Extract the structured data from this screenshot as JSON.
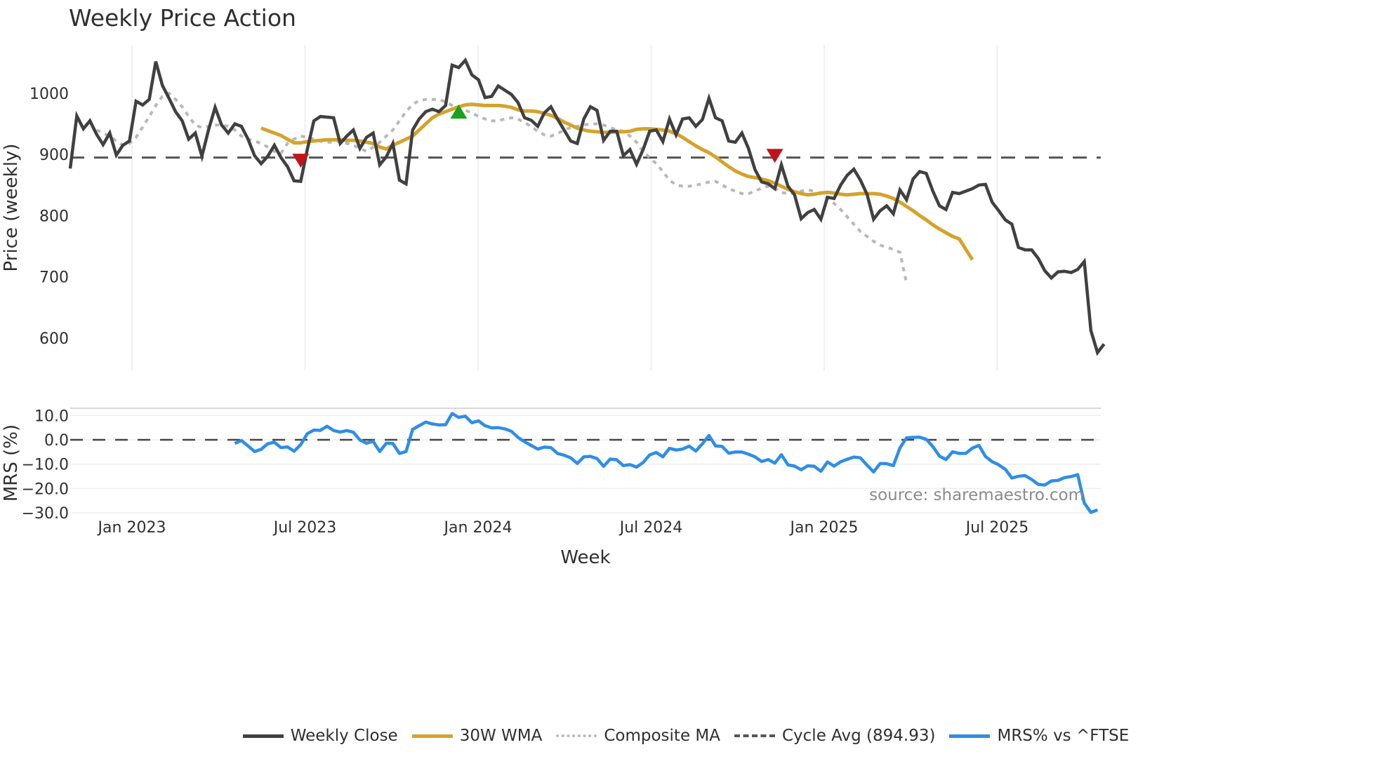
{
  "title": "Weekly Price Action",
  "source_label": "source: sharemaestro.com",
  "legend": [
    {
      "label": "Weekly Close",
      "color": "#404040",
      "style": "solid"
    },
    {
      "label": "30W WMA",
      "color": "#d4a32a",
      "style": "solid"
    },
    {
      "label": "Composite MA",
      "color": "#b8b8b8",
      "style": "dotted"
    },
    {
      "label": "Cycle Avg (894.93)",
      "color": "#555555",
      "style": "dashed"
    },
    {
      "label": "MRS% vs ^FTSE",
      "color": "#2e8ee6",
      "style": "solid"
    }
  ],
  "chart_data": [
    {
      "type": "line",
      "title": "Weekly Price Action",
      "xlabel": "Week",
      "ylabel": "Price (weekly)",
      "ylim": [
        545,
        1080
      ],
      "yticks": [
        600,
        700,
        800,
        900,
        1000
      ],
      "xticks": [
        "Jan 2023",
        "Jul 2023",
        "Jan 2024",
        "Jul 2024",
        "Jan 2025",
        "Jul 2025"
      ],
      "grid": true,
      "cycle_avg": 894.93,
      "x_start_week": "2022-10-24",
      "series": [
        {
          "name": "Weekly Close",
          "values": [
            877,
            963,
            942,
            955,
            933,
            916,
            935,
            899,
            915,
            922,
            987,
            981,
            990,
            1052,
            1013,
            992,
            970,
            955,
            925,
            935,
            897,
            940,
            977,
            948,
            935,
            950,
            946,
            925,
            898,
            885,
            897,
            915,
            895,
            880,
            857,
            856,
            908,
            955,
            962,
            961,
            960,
            918,
            930,
            940,
            910,
            928,
            935,
            883,
            896,
            918,
            858,
            852,
            940,
            958,
            970,
            974,
            970,
            980,
            1046,
            1042,
            1054,
            1030,
            1022,
            993,
            995,
            1012,
            1005,
            998,
            985,
            960,
            956,
            946,
            968,
            978,
            958,
            940,
            922,
            918,
            958,
            978,
            972,
            923,
            938,
            938,
            898,
            908,
            884,
            908,
            938,
            940,
            921,
            958,
            932,
            958,
            960,
            946,
            957,
            992,
            960,
            955,
            922,
            920,
            935,
            910,
            875,
            855,
            852,
            844,
            883,
            848,
            834,
            795,
            805,
            810,
            794,
            830,
            828,
            850,
            866,
            876,
            858,
            835,
            794,
            808,
            816,
            803,
            842,
            826,
            860,
            872,
            869,
            840,
            816,
            810,
            838,
            836,
            840,
            844,
            850,
            851,
            822,
            808,
            793,
            786,
            748,
            744,
            744,
            730,
            710,
            698,
            708,
            709,
            707,
            712,
            725,
            612,
            576,
            590
          ]
        },
        {
          "name": "30W WMA",
          "start_index": 29,
          "values": [
            943,
            939,
            935,
            931,
            925,
            919,
            919,
            921,
            922,
            923,
            924,
            924,
            924,
            923,
            923,
            922,
            920,
            918,
            912,
            909,
            915,
            920,
            925,
            930,
            940,
            950,
            960,
            966,
            970,
            974,
            978,
            981,
            982,
            981,
            980,
            980,
            980,
            979,
            977,
            973,
            971,
            971,
            970,
            967,
            964,
            959,
            953,
            948,
            943,
            940,
            938,
            937,
            936,
            936,
            937,
            937,
            938,
            941,
            942,
            942,
            941,
            940,
            938,
            934,
            928,
            921,
            914,
            908,
            903,
            896,
            888,
            880,
            873,
            868,
            864,
            862,
            860,
            857,
            853,
            848,
            843,
            839,
            836,
            834,
            835,
            837,
            838,
            837,
            835,
            834,
            835,
            836,
            836,
            836,
            835,
            832,
            828,
            822,
            815,
            808,
            800,
            793,
            785,
            778,
            772,
            766,
            762,
            745,
            728
          ]
        },
        {
          "name": "Composite MA",
          "start_index": 4,
          "values": [
            940,
            935,
            930,
            922,
            915,
            918,
            928,
            945,
            962,
            980,
            995,
            1000,
            990,
            978,
            962,
            948,
            944,
            946,
            948,
            948,
            946,
            940,
            930,
            925,
            922,
            918,
            912,
            905,
            902,
            918,
            925,
            930,
            928,
            925,
            922,
            920,
            920,
            922,
            918,
            915,
            910,
            905,
            912,
            920,
            930,
            940,
            955,
            970,
            982,
            988,
            990,
            990,
            990,
            986,
            980,
            975,
            972,
            968,
            962,
            958,
            955,
            955,
            958,
            960,
            958,
            952,
            946,
            938,
            932,
            930,
            934,
            940,
            944,
            946,
            948,
            950,
            950,
            948,
            944,
            940,
            938,
            930,
            920,
            905,
            895,
            885,
            872,
            858,
            850,
            848,
            848,
            850,
            852,
            855,
            856,
            850,
            844,
            840,
            836,
            836,
            840,
            845,
            848,
            845,
            838,
            836,
            837,
            840,
            842,
            840,
            835,
            828,
            820,
            810,
            798,
            786,
            774,
            766,
            758,
            752,
            748,
            745,
            740,
            690
          ]
        },
        {
          "name": "Cycle Avg (894.93)",
          "values": [
            894.93
          ]
        }
      ],
      "markers": [
        {
          "type": "sell",
          "shape": "triangle-down",
          "color": "#c0141b",
          "week_index": 35,
          "value": 892
        },
        {
          "type": "buy",
          "shape": "triangle-up",
          "color": "#1aa01a",
          "week_index": 59,
          "value": 970
        },
        {
          "type": "sell",
          "shape": "triangle-down",
          "color": "#c0141b",
          "week_index": 107,
          "value": 900
        }
      ]
    },
    {
      "type": "line",
      "title": "",
      "xlabel": "Week",
      "ylabel": "MRS (%)",
      "ylim": [
        -31,
        13
      ],
      "yticks": [
        10.0,
        0.0,
        -10.0,
        -20.0,
        -30.0
      ],
      "grid": true,
      "series": [
        {
          "name": "MRS% vs ^FTSE",
          "start_index": 25,
          "values": [
            -1.5,
            -0.3,
            -2.5,
            -4.8,
            -3.9,
            -1.6,
            -1.0,
            -3.2,
            -2.9,
            -4.7,
            -2.0,
            2.5,
            4.0,
            3.9,
            5.6,
            3.8,
            3.2,
            3.8,
            3.1,
            -0.1,
            -1.4,
            -0.6,
            -4.8,
            -1.4,
            -1.5,
            -5.6,
            -4.8,
            4.3,
            5.8,
            7.3,
            6.5,
            6.1,
            6.2,
            10.8,
            9.2,
            9.7,
            7.0,
            7.8,
            5.8,
            4.9,
            5.0,
            4.5,
            3.5,
            1.0,
            -0.8,
            -2.3,
            -3.8,
            -3.0,
            -3.2,
            -5.6,
            -6.3,
            -7.4,
            -9.7,
            -7.0,
            -6.8,
            -7.7,
            -10.9,
            -7.9,
            -8.2,
            -10.6,
            -10.2,
            -11.2,
            -9.3,
            -6.2,
            -5.2,
            -7.0,
            -3.5,
            -4.2,
            -3.8,
            -2.6,
            -4.6,
            -1.6,
            1.8,
            -2.5,
            -2.7,
            -5.5,
            -5.0,
            -5.0,
            -5.9,
            -7.0,
            -8.9,
            -8.1,
            -9.6,
            -6.1,
            -10.3,
            -10.8,
            -12.3,
            -10.7,
            -10.9,
            -12.9,
            -9.1,
            -10.8,
            -9.0,
            -8.0,
            -7.1,
            -7.4,
            -10.4,
            -13.2,
            -9.7,
            -9.8,
            -10.6,
            -3.3,
            0.8,
            1.0,
            1.1,
            0.2,
            -2.8,
            -6.7,
            -8.1,
            -4.9,
            -5.6,
            -5.6,
            -3.4,
            -2.3,
            -6.9,
            -9.0,
            -10.3,
            -12.1,
            -15.7,
            -15.0,
            -14.7,
            -16.3,
            -18.3,
            -18.6,
            -16.9,
            -16.7,
            -15.5,
            -15.1,
            -14.3,
            -26.0,
            -29.8,
            -28.8
          ]
        },
        {
          "name": "zero",
          "values": [
            0
          ]
        }
      ],
      "annotations": [
        "source: sharemaestro.com"
      ]
    }
  ]
}
